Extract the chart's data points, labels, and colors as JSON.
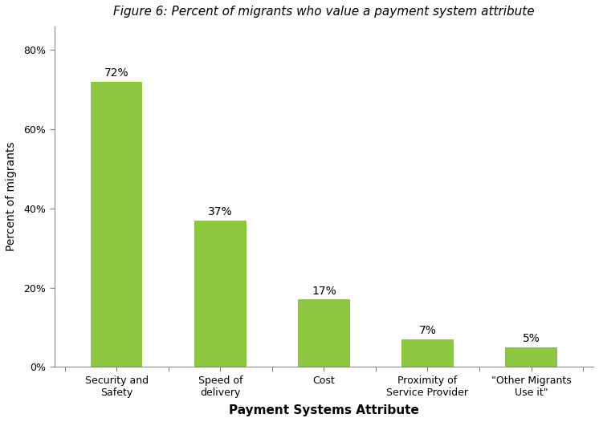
{
  "title": "Figure 6: Percent of migrants who value a payment system attribute",
  "categories": [
    "Security and\nSafety",
    "Speed of\ndelivery",
    "Cost",
    "Proximity of\nService Provider",
    "\"Other Migrants\nUse it\""
  ],
  "values": [
    0.72,
    0.37,
    0.17,
    0.07,
    0.05
  ],
  "labels": [
    "72%",
    "37%",
    "17%",
    "7%",
    "5%"
  ],
  "bar_color": "#8dc63f",
  "xlabel": "Payment Systems Attribute",
  "ylabel": "Percent of migrants",
  "ylim": [
    0,
    0.86
  ],
  "yticks": [
    0,
    0.2,
    0.4,
    0.6,
    0.8
  ],
  "ytick_labels": [
    "0%",
    "20%",
    "40%",
    "60%",
    "80%"
  ],
  "background_color": "#ffffff",
  "title_fontsize": 11,
  "label_fontsize": 10,
  "xlabel_fontsize": 11,
  "ylabel_fontsize": 10,
  "bar_width": 0.5
}
